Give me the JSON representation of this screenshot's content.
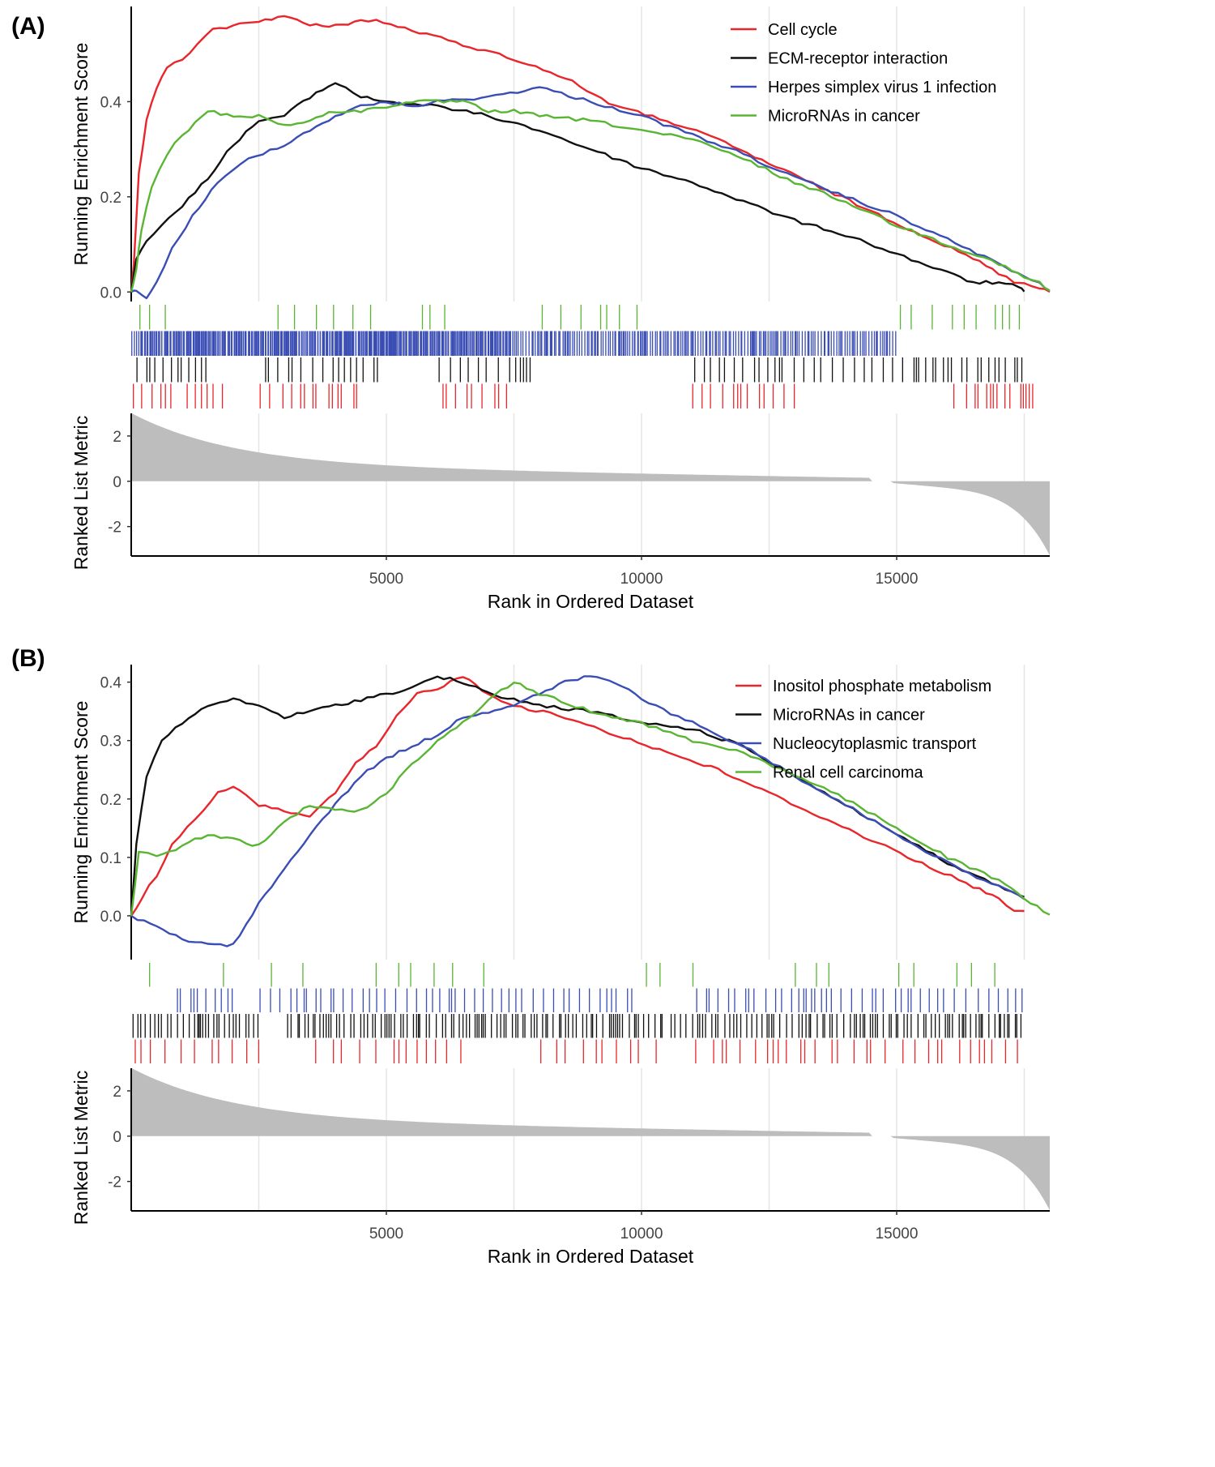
{
  "colors": {
    "red": "#e8262b",
    "black": "#111111",
    "blue": "#3a4db5",
    "green": "#5ab534",
    "metric": "#bdbdbd",
    "grid": "#e6e6e6"
  },
  "chart_data": [
    {
      "panel_label": "(A)",
      "type": "line",
      "xlabel": "Rank in Ordered Dataset",
      "ylabel_top": "Running Enrichment Score",
      "ylabel_bottom": "Ranked List Metric",
      "x_range": [
        0,
        18000
      ],
      "x_ticks": [
        5000,
        10000,
        15000
      ],
      "x_tick_labels": [
        "5000",
        "10000",
        "15000"
      ],
      "es_ylim": [
        -0.02,
        0.6
      ],
      "es_ticks": [
        0.0,
        0.2,
        0.4
      ],
      "es_tick_labels": [
        "0.0",
        "0.2",
        "0.4"
      ],
      "metric_ylim": [
        -3.3,
        3.0
      ],
      "metric_ticks": [
        2,
        0,
        -2
      ],
      "metric_tick_labels": [
        "2",
        "0",
        "-2"
      ],
      "legend_position": "top-right",
      "series": [
        {
          "name": "Cell cycle",
          "color": "red",
          "x": [
            0,
            50,
            150,
            300,
            500,
            700,
            1000,
            1300,
            1600,
            2000,
            2500,
            3000,
            3500,
            4000,
            4500,
            4800,
            5500,
            6500,
            7500,
            8500,
            9500,
            10500,
            11500,
            12500,
            13500,
            14500,
            15500,
            16500,
            17000,
            17300,
            17500,
            17800,
            18000
          ],
          "y": [
            0.0,
            0.06,
            0.25,
            0.36,
            0.43,
            0.47,
            0.49,
            0.52,
            0.55,
            0.56,
            0.57,
            0.58,
            0.56,
            0.56,
            0.57,
            0.57,
            0.55,
            0.52,
            0.49,
            0.45,
            0.39,
            0.36,
            0.32,
            0.27,
            0.22,
            0.17,
            0.12,
            0.07,
            0.04,
            0.02,
            0.02,
            0.01,
            0.0
          ]
        },
        {
          "name": "ECM-receptor interaction",
          "color": "black",
          "x": [
            0,
            100,
            300,
            600,
            1000,
            1500,
            2000,
            2500,
            3000,
            3500,
            4000,
            4200,
            4500,
            5000,
            6000,
            7000,
            8000,
            9000,
            10000,
            11000,
            12000,
            13000,
            14000,
            15000,
            16000,
            16500,
            17000,
            17400,
            17500
          ],
          "y": [
            0.0,
            0.07,
            0.11,
            0.14,
            0.18,
            0.24,
            0.31,
            0.36,
            0.37,
            0.41,
            0.44,
            0.43,
            0.41,
            0.4,
            0.39,
            0.37,
            0.34,
            0.3,
            0.26,
            0.23,
            0.19,
            0.15,
            0.12,
            0.08,
            0.04,
            0.02,
            0.02,
            0.01,
            0.0
          ]
        },
        {
          "name": "Herpes simplex virus 1 infection",
          "color": "blue",
          "x": [
            0,
            100,
            300,
            500,
            800,
            1200,
            1700,
            2300,
            3000,
            3500,
            4000,
            4500,
            5000,
            5500,
            6000,
            7000,
            8000,
            9000,
            10000,
            11000,
            12000,
            13000,
            14000,
            15000,
            16000,
            17000,
            17500,
            17800,
            18000
          ],
          "y": [
            0.0,
            0.0,
            -0.01,
            0.02,
            0.09,
            0.16,
            0.23,
            0.28,
            0.31,
            0.34,
            0.37,
            0.39,
            0.4,
            0.39,
            0.4,
            0.41,
            0.43,
            0.4,
            0.37,
            0.33,
            0.29,
            0.24,
            0.2,
            0.16,
            0.11,
            0.06,
            0.03,
            0.02,
            0.0
          ]
        },
        {
          "name": "MicroRNAs in cancer",
          "color": "green",
          "x": [
            0,
            100,
            200,
            400,
            700,
            1000,
            1500,
            2000,
            2500,
            3000,
            3500,
            4000,
            4500,
            5000,
            5500,
            6000,
            6500,
            7000,
            7500,
            8000,
            9000,
            10000,
            11000,
            12000,
            13000,
            14000,
            15000,
            16000,
            17000,
            17500,
            17800,
            18000
          ],
          "y": [
            0.0,
            0.05,
            0.13,
            0.22,
            0.29,
            0.33,
            0.38,
            0.37,
            0.37,
            0.35,
            0.36,
            0.38,
            0.38,
            0.39,
            0.4,
            0.4,
            0.4,
            0.38,
            0.38,
            0.37,
            0.36,
            0.34,
            0.32,
            0.28,
            0.23,
            0.19,
            0.14,
            0.1,
            0.06,
            0.03,
            0.02,
            0.0
          ]
        }
      ],
      "hit_bands": [
        {
          "color": "green",
          "density": 0.5,
          "zones": [
            [
              0,
              1000
            ],
            [
              2700,
              3300
            ],
            [
              3400,
              4700
            ],
            [
              5500,
              6300
            ],
            [
              8000,
              10000
            ],
            [
              15000,
              17600
            ]
          ]
        },
        {
          "color": "blue",
          "density": 3.5,
          "zones": [
            [
              200,
              7500
            ],
            [
              0,
              15000
            ]
          ]
        },
        {
          "color": "black",
          "density": 0.9,
          "zones": [
            [
              0,
              1500
            ],
            [
              2500,
              5000
            ],
            [
              6000,
              8000
            ],
            [
              11000,
              17500
            ]
          ]
        },
        {
          "color": "red",
          "density": 0.8,
          "zones": [
            [
              0,
              900
            ],
            [
              1000,
              2000
            ],
            [
              2500,
              4500
            ],
            [
              6000,
              7500
            ],
            [
              11000,
              13000
            ],
            [
              16000,
              17800
            ]
          ]
        }
      ]
    },
    {
      "panel_label": "(B)",
      "type": "line",
      "xlabel": "Rank in Ordered Dataset",
      "ylabel_top": "Running Enrichment Score",
      "ylabel_bottom": "Ranked List Metric",
      "x_range": [
        0,
        18000
      ],
      "x_ticks": [
        5000,
        10000,
        15000
      ],
      "x_tick_labels": [
        "5000",
        "10000",
        "15000"
      ],
      "es_ylim": [
        -0.075,
        0.43
      ],
      "es_ticks": [
        0.0,
        0.1,
        0.2,
        0.3,
        0.4
      ],
      "es_tick_labels": [
        "0.0",
        "0.1",
        "0.2",
        "0.3",
        "0.4"
      ],
      "metric_ylim": [
        -3.3,
        3.0
      ],
      "metric_ticks": [
        2,
        0,
        -2
      ],
      "metric_tick_labels": [
        "2",
        "0",
        "-2"
      ],
      "legend_position": "top-right",
      "series": [
        {
          "name": "Inositol phosphate metabolism",
          "color": "red",
          "x": [
            0,
            200,
            500,
            800,
            1100,
            1400,
            1700,
            2000,
            2500,
            3000,
            3500,
            4000,
            4400,
            4800,
            5200,
            5600,
            6000,
            6500,
            7000,
            7500,
            8500,
            9500,
            10500,
            11500,
            12500,
            13500,
            14500,
            15500,
            16500,
            17000,
            17300,
            17500
          ],
          "y": [
            0.0,
            0.03,
            0.07,
            0.12,
            0.15,
            0.18,
            0.21,
            0.22,
            0.19,
            0.18,
            0.17,
            0.21,
            0.26,
            0.29,
            0.34,
            0.38,
            0.39,
            0.41,
            0.38,
            0.36,
            0.34,
            0.31,
            0.28,
            0.25,
            0.21,
            0.17,
            0.13,
            0.09,
            0.05,
            0.03,
            0.01,
            0.01
          ]
        },
        {
          "name": "MicroRNAs in cancer",
          "color": "black",
          "x": [
            0,
            100,
            300,
            600,
            1000,
            1500,
            2000,
            2500,
            3000,
            3500,
            4000,
            4500,
            5000,
            5500,
            6000,
            6500,
            7000,
            7500,
            8000,
            9000,
            10000,
            11000,
            12000,
            13000,
            14000,
            15000,
            16000,
            17000,
            17500
          ],
          "y": [
            0.0,
            0.12,
            0.24,
            0.3,
            0.33,
            0.36,
            0.37,
            0.36,
            0.34,
            0.35,
            0.36,
            0.37,
            0.38,
            0.39,
            0.41,
            0.4,
            0.38,
            0.37,
            0.36,
            0.35,
            0.33,
            0.32,
            0.29,
            0.24,
            0.19,
            0.14,
            0.09,
            0.05,
            0.03
          ]
        },
        {
          "name": "Nucleocytoplasmic transport",
          "color": "blue",
          "x": [
            0,
            500,
            1000,
            1500,
            2000,
            2500,
            3000,
            3500,
            4000,
            4500,
            5000,
            5500,
            6000,
            6500,
            7000,
            7500,
            8000,
            8500,
            9000,
            9500,
            10000,
            11000,
            12000,
            13000,
            14000,
            15000,
            16000,
            17000,
            17500
          ],
          "y": [
            0.0,
            -0.02,
            -0.04,
            -0.05,
            -0.05,
            0.02,
            0.08,
            0.14,
            0.19,
            0.24,
            0.27,
            0.29,
            0.31,
            0.34,
            0.35,
            0.36,
            0.38,
            0.4,
            0.41,
            0.4,
            0.37,
            0.33,
            0.29,
            0.24,
            0.19,
            0.14,
            0.09,
            0.05,
            0.03
          ]
        },
        {
          "name": "Renal cell carcinoma",
          "color": "green",
          "x": [
            0,
            150,
            500,
            1000,
            1500,
            2000,
            2500,
            3000,
            3500,
            4000,
            4500,
            5000,
            5500,
            6000,
            6500,
            7000,
            7500,
            8000,
            9000,
            10000,
            11000,
            12000,
            13000,
            14000,
            15000,
            16000,
            17000,
            17500,
            18000
          ],
          "y": [
            0.0,
            0.11,
            0.1,
            0.12,
            0.14,
            0.13,
            0.12,
            0.16,
            0.19,
            0.18,
            0.18,
            0.21,
            0.26,
            0.3,
            0.33,
            0.37,
            0.4,
            0.38,
            0.35,
            0.33,
            0.3,
            0.28,
            0.24,
            0.2,
            0.15,
            0.1,
            0.06,
            0.03,
            0.0
          ]
        }
      ],
      "hit_bands": [
        {
          "color": "green",
          "density": 0.25,
          "zones": [
            [
              0,
              700
            ],
            [
              1500,
              2200
            ],
            [
              2700,
              3500
            ],
            [
              4500,
              7500
            ],
            [
              10000,
              11500
            ],
            [
              12500,
              14000
            ],
            [
              15000,
              17000
            ]
          ]
        },
        {
          "color": "blue",
          "density": 0.9,
          "zones": [
            [
              800,
              2200
            ],
            [
              2500,
              10000
            ],
            [
              11000,
              17500
            ]
          ]
        },
        {
          "color": "black",
          "density": 1.6,
          "zones": [
            [
              0,
              2500
            ],
            [
              3000,
              10500
            ],
            [
              10500,
              17500
            ]
          ]
        },
        {
          "color": "red",
          "density": 0.6,
          "zones": [
            [
              0,
              2500
            ],
            [
              3500,
              6500
            ],
            [
              8000,
              10500
            ],
            [
              11000,
              17500
            ]
          ]
        }
      ]
    }
  ]
}
